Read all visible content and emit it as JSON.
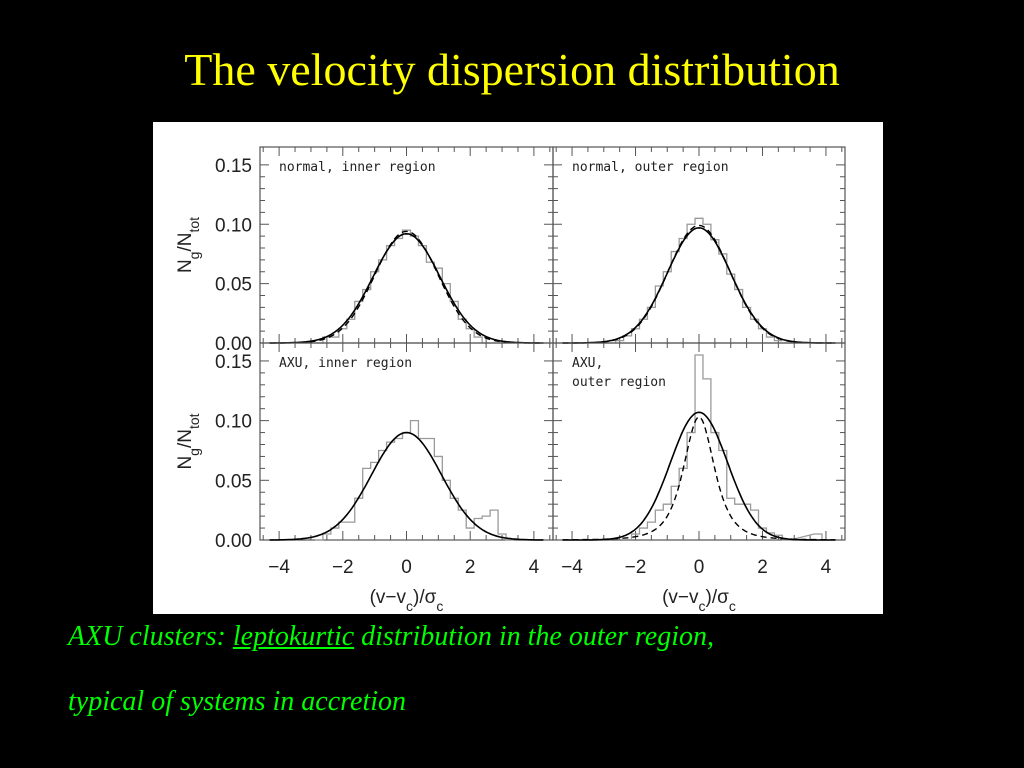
{
  "slide": {
    "title": "The velocity dispersion distribution",
    "caption": {
      "line1_before": "AXU clusters: ",
      "line1_underlined": "leptokurtic",
      "line1_after": " distribution in the outer region,",
      "line2": "typical of systems in accretion"
    }
  },
  "colors": {
    "background": "#000000",
    "title": "#ffff00",
    "caption": "#00ff00",
    "figure_background": "#ffffff",
    "histogram": "#9a9a9a",
    "curve": "#000000"
  },
  "chart_data": {
    "type": "histogram-grid",
    "layout": "2x2",
    "xlim": [
      -4.6,
      4.6
    ],
    "ylim": [
      0,
      0.16
    ],
    "x_ticks": [
      -4,
      -2,
      0,
      2,
      4
    ],
    "y_ticks": [
      "0.00",
      "0.05",
      "0.10",
      "0.15"
    ],
    "xlabel": "(v-v_c)/σ_c",
    "ylabel": "N_g/N_tot",
    "bin_width": 0.25,
    "panels": [
      {
        "id": "normal-inner",
        "label_lines": [
          "normal, inner region"
        ],
        "solid_sigma": 1.05,
        "solid_peak": 0.092,
        "dashed_sigma": 1.0,
        "dashed_peak": 0.094,
        "dashed_kurtosis": 0,
        "histogram": [
          {
            "x": -2.75,
            "y": 0.0
          },
          {
            "x": -2.5,
            "y": 0.005
          },
          {
            "x": -2.25,
            "y": 0.005
          },
          {
            "x": -2.0,
            "y": 0.012
          },
          {
            "x": -1.75,
            "y": 0.02
          },
          {
            "x": -1.5,
            "y": 0.035
          },
          {
            "x": -1.25,
            "y": 0.045
          },
          {
            "x": -1.0,
            "y": 0.06
          },
          {
            "x": -0.75,
            "y": 0.07
          },
          {
            "x": -0.5,
            "y": 0.082
          },
          {
            "x": -0.25,
            "y": 0.088
          },
          {
            "x": 0.0,
            "y": 0.095
          },
          {
            "x": 0.25,
            "y": 0.09
          },
          {
            "x": 0.5,
            "y": 0.082
          },
          {
            "x": 0.75,
            "y": 0.068
          },
          {
            "x": 1.0,
            "y": 0.063
          },
          {
            "x": 1.25,
            "y": 0.05
          },
          {
            "x": 1.5,
            "y": 0.035
          },
          {
            "x": 1.75,
            "y": 0.02
          },
          {
            "x": 2.0,
            "y": 0.012
          },
          {
            "x": 2.25,
            "y": 0.005
          },
          {
            "x": 2.5,
            "y": 0.0
          }
        ]
      },
      {
        "id": "normal-outer",
        "label_lines": [
          "normal, outer region"
        ],
        "solid_sigma": 1.0,
        "solid_peak": 0.097,
        "dashed_sigma": 0.98,
        "dashed_peak": 0.099,
        "dashed_kurtosis": 0,
        "histogram": [
          {
            "x": -2.5,
            "y": 0.002
          },
          {
            "x": -2.25,
            "y": 0.006
          },
          {
            "x": -2.0,
            "y": 0.012
          },
          {
            "x": -1.75,
            "y": 0.02
          },
          {
            "x": -1.5,
            "y": 0.03
          },
          {
            "x": -1.25,
            "y": 0.048
          },
          {
            "x": -1.0,
            "y": 0.06
          },
          {
            "x": -0.75,
            "y": 0.077
          },
          {
            "x": -0.5,
            "y": 0.088
          },
          {
            "x": -0.25,
            "y": 0.1
          },
          {
            "x": 0.0,
            "y": 0.105
          },
          {
            "x": 0.25,
            "y": 0.1
          },
          {
            "x": 0.5,
            "y": 0.087
          },
          {
            "x": 0.75,
            "y": 0.075
          },
          {
            "x": 1.0,
            "y": 0.058
          },
          {
            "x": 1.25,
            "y": 0.045
          },
          {
            "x": 1.5,
            "y": 0.03
          },
          {
            "x": 1.75,
            "y": 0.02
          },
          {
            "x": 2.0,
            "y": 0.012
          },
          {
            "x": 2.25,
            "y": 0.005
          },
          {
            "x": 2.5,
            "y": 0.002
          }
        ]
      },
      {
        "id": "axu-inner",
        "label_lines": [
          "AXU, inner region"
        ],
        "solid_sigma": 1.1,
        "solid_peak": 0.09,
        "dashed_sigma": 0,
        "dashed_peak": 0,
        "dashed_kurtosis": 0,
        "histogram": [
          {
            "x": -2.75,
            "y": 0.0
          },
          {
            "x": -2.5,
            "y": 0.005
          },
          {
            "x": -2.25,
            "y": 0.01
          },
          {
            "x": -2.0,
            "y": 0.015
          },
          {
            "x": -1.75,
            "y": 0.015
          },
          {
            "x": -1.5,
            "y": 0.035
          },
          {
            "x": -1.25,
            "y": 0.06
          },
          {
            "x": -1.0,
            "y": 0.065
          },
          {
            "x": -0.75,
            "y": 0.075
          },
          {
            "x": -0.5,
            "y": 0.082
          },
          {
            "x": -0.25,
            "y": 0.085
          },
          {
            "x": 0.0,
            "y": 0.09
          },
          {
            "x": 0.25,
            "y": 0.1
          },
          {
            "x": 0.5,
            "y": 0.085
          },
          {
            "x": 0.75,
            "y": 0.085
          },
          {
            "x": 1.0,
            "y": 0.07
          },
          {
            "x": 1.25,
            "y": 0.05
          },
          {
            "x": 1.5,
            "y": 0.035
          },
          {
            "x": 1.75,
            "y": 0.025
          },
          {
            "x": 2.0,
            "y": 0.01
          },
          {
            "x": 2.25,
            "y": 0.018
          },
          {
            "x": 2.5,
            "y": 0.02
          },
          {
            "x": 2.75,
            "y": 0.025
          },
          {
            "x": 3.0,
            "y": 0.005
          },
          {
            "x": 3.25,
            "y": 0.0
          }
        ]
      },
      {
        "id": "axu-outer",
        "label_lines": [
          "AXU,",
          "outer region"
        ],
        "solid_sigma": 0.9,
        "solid_peak": 0.107,
        "dashed_sigma": 0.75,
        "dashed_peak": 0.103,
        "dashed_kurtosis": 1.4,
        "histogram": [
          {
            "x": -2.0,
            "y": 0.005
          },
          {
            "x": -1.75,
            "y": 0.01
          },
          {
            "x": -1.5,
            "y": 0.015
          },
          {
            "x": -1.25,
            "y": 0.025
          },
          {
            "x": -1.0,
            "y": 0.03
          },
          {
            "x": -0.75,
            "y": 0.045
          },
          {
            "x": -0.5,
            "y": 0.06
          },
          {
            "x": -0.25,
            "y": 0.09
          },
          {
            "x": 0.0,
            "y": 0.155
          },
          {
            "x": 0.25,
            "y": 0.135
          },
          {
            "x": 0.5,
            "y": 0.09
          },
          {
            "x": 0.75,
            "y": 0.075
          },
          {
            "x": 1.0,
            "y": 0.035
          },
          {
            "x": 1.25,
            "y": 0.03
          },
          {
            "x": 1.5,
            "y": 0.03
          },
          {
            "x": 1.75,
            "y": 0.025
          },
          {
            "x": 2.0,
            "y": 0.01
          },
          {
            "x": 2.25,
            "y": 0.006
          },
          {
            "x": 2.5,
            "y": 0.004
          },
          {
            "x": 2.75,
            "y": 0.0
          },
          {
            "x": 3.75,
            "y": 0.005
          },
          {
            "x": 4.0,
            "y": 0.0
          }
        ]
      }
    ]
  }
}
